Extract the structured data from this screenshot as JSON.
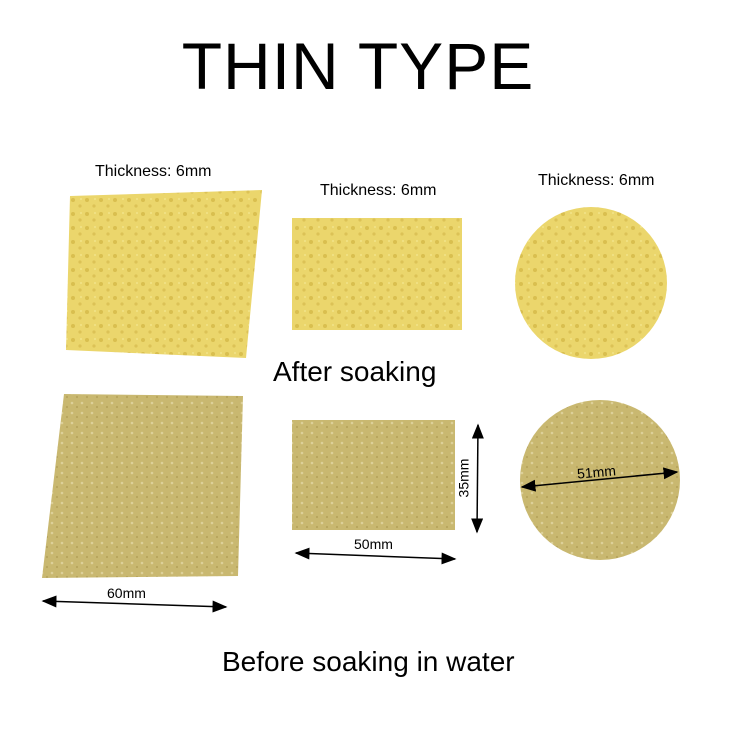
{
  "title": "THIN TYPE",
  "thickness_labels": [
    "Thickness: 6mm",
    "Thickness: 6mm",
    "Thickness: 6mm"
  ],
  "after_label": "After soaking",
  "before_label": "Before soaking in water",
  "dimensions": {
    "square": "60mm",
    "rect_width": "50mm",
    "rect_height": "35mm",
    "circle": "51mm"
  },
  "colors": {
    "wet_sponge": "#e9d46a",
    "dry_sponge": "#c8b872",
    "background": "#ffffff"
  }
}
